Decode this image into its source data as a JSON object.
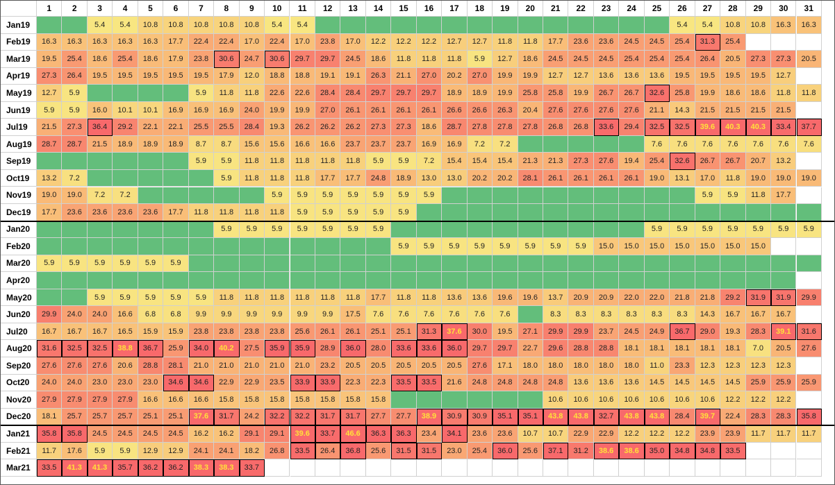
{
  "columns": [
    "1",
    "2",
    "3",
    "4",
    "5",
    "6",
    "7",
    "8",
    "9",
    "10",
    "11",
    "12",
    "13",
    "14",
    "15",
    "16",
    "17",
    "18",
    "19",
    "20",
    "21",
    "22",
    "23",
    "24",
    "25",
    "26",
    "27",
    "28",
    "29",
    "30",
    "31"
  ],
  "colors": {
    "empty_green": "#63be7b",
    "scale_low": "#f8e681",
    "scale_mid": "#f9b376",
    "scale_high": "#f8696b",
    "blank": "#ffffff",
    "highlight_text": "#ffe13a"
  },
  "boxed_cells": {
    "Feb19": [
      "27"
    ],
    "Mar19": [
      "8",
      "10"
    ],
    "May19": [
      "25"
    ],
    "Jul19": [
      "3",
      "23",
      "25",
      "26",
      "27",
      "28",
      "29",
      "30",
      "31"
    ],
    "Sep19": [
      "26"
    ],
    "May20": [
      "29",
      "30"
    ],
    "Jul20": [
      "16",
      "17",
      "26",
      "30",
      "31"
    ],
    "Aug20": [
      "1",
      "2",
      "3",
      "4",
      "5",
      "7",
      "8",
      "10",
      "11",
      "13",
      "15",
      "16",
      "17"
    ],
    "Oct20": [
      "6",
      "7",
      "11",
      "12",
      "15",
      "16"
    ],
    "Dec20": [
      "7",
      "8",
      "10",
      "11",
      "12",
      "13",
      "16",
      "17",
      "18",
      "19",
      "20",
      "21",
      "22",
      "23",
      "24",
      "25",
      "27",
      "31"
    ],
    "Jan21": [
      "1",
      "2",
      "11",
      "12",
      "13",
      "14",
      "15",
      "17"
    ],
    "Feb21": [
      "11",
      "12",
      "13",
      "15",
      "16",
      "19",
      "21",
      "23",
      "24",
      "25",
      "26",
      "27",
      "28"
    ],
    "Mar21": [
      "1",
      "2",
      "3",
      "4",
      "5",
      "6",
      "7",
      "8",
      "9"
    ]
  },
  "rows": [
    {
      "label": "Jan19",
      "values": [
        "",
        "",
        "5.4",
        "5.4",
        "10.8",
        "10.8",
        "10.8",
        "10.8",
        "10.8",
        "5.4",
        "5.4",
        "",
        "",
        "",
        "",
        "",
        "",
        "",
        "",
        "",
        "",
        "",
        "",
        "",
        "",
        "5.4",
        "5.4",
        "10.8",
        "10.8",
        "16.3",
        "16.3"
      ]
    },
    {
      "label": "Feb19",
      "values": [
        "16.3",
        "16.3",
        "16.3",
        "16.3",
        "16.3",
        "17.7",
        "22.4",
        "22.4",
        "17.0",
        "22.4",
        "17.0",
        "23.8",
        "17.0",
        "12.2",
        "12.2",
        "12.2",
        "12.7",
        "12.7",
        "11.8",
        "11.8",
        "17.7",
        "23.6",
        "23.6",
        "24.5",
        "24.5",
        "25.4",
        "31.3",
        "25.4",
        "-",
        "-",
        "-"
      ]
    },
    {
      "label": "Mar19",
      "values": [
        "19.5",
        "25.4",
        "18.6",
        "25.4",
        "18.6",
        "17.9",
        "23.8",
        "30.6",
        "24.7",
        "30.6",
        "29.7",
        "29.7",
        "24.5",
        "18.6",
        "11.8",
        "11.8",
        "11.8",
        "5.9",
        "12.7",
        "18.6",
        "24.5",
        "24.5",
        "24.5",
        "25.4",
        "25.4",
        "25.4",
        "26.4",
        "20.5",
        "27.3",
        "27.3",
        "20.5"
      ]
    },
    {
      "label": "Apr19",
      "values": [
        "27.3",
        "26.4",
        "19.5",
        "19.5",
        "19.5",
        "19.5",
        "19.5",
        "17.9",
        "12.0",
        "18.8",
        "18.8",
        "19.1",
        "19.1",
        "26.3",
        "21.1",
        "27.0",
        "20.2",
        "27.0",
        "19.9",
        "19.9",
        "12.7",
        "12.7",
        "13.6",
        "13.6",
        "13.6",
        "19.5",
        "19.5",
        "19.5",
        "19.5",
        "12.7",
        "-"
      ]
    },
    {
      "label": "May19",
      "values": [
        "12.7",
        "5.9",
        "",
        "",
        "",
        "",
        "5.9",
        "11.8",
        "11.8",
        "22.6",
        "22.6",
        "28.4",
        "28.4",
        "29.7",
        "29.7",
        "29.7",
        "18.9",
        "18.9",
        "19.9",
        "25.8",
        "25.8",
        "19.9",
        "26.7",
        "26.7",
        "32.6",
        "25.8",
        "19.9",
        "18.6",
        "18.6",
        "11.8",
        "11.8"
      ]
    },
    {
      "label": "Jun19",
      "values": [
        "5.9",
        "5.9",
        "16.0",
        "10.1",
        "10.1",
        "16.9",
        "16.9",
        "16.9",
        "24.0",
        "19.9",
        "19.9",
        "27.0",
        "26.1",
        "26.1",
        "26.1",
        "26.1",
        "26.6",
        "26.6",
        "26.3",
        "20.4",
        "27.6",
        "27.6",
        "27.6",
        "27.6",
        "21.1",
        "14.3",
        "21.5",
        "21.5",
        "21.5",
        "21.5",
        "-"
      ]
    },
    {
      "label": "Jul19",
      "values": [
        "21.5",
        "27.3",
        "36.4",
        "29.2",
        "22.1",
        "22.1",
        "25.5",
        "25.5",
        "28.4",
        "19.3",
        "26.2",
        "26.2",
        "26.2",
        "27.3",
        "27.3",
        "18.6",
        "28.7",
        "27.8",
        "27.8",
        "27.8",
        "26.8",
        "26.8",
        "33.6",
        "29.4",
        "32.5",
        "32.5",
        "39.6",
        "40.3",
        "40.3",
        "33.4",
        "37.7"
      ]
    },
    {
      "label": "Aug19",
      "values": [
        "28.7",
        "28.7",
        "21.5",
        "18.9",
        "18.9",
        "18.9",
        "8.7",
        "8.7",
        "15.6",
        "15.6",
        "16.6",
        "16.6",
        "23.7",
        "23.7",
        "23.7",
        "16.9",
        "16.9",
        "7.2",
        "7.2",
        "",
        "",
        "",
        "",
        "",
        "7.6",
        "7.6",
        "7.6",
        "7.6",
        "7.6",
        "7.6",
        "7.6"
      ]
    },
    {
      "label": "Sep19",
      "values": [
        "",
        "",
        "",
        "",
        "",
        "",
        "5.9",
        "5.9",
        "11.8",
        "11.8",
        "11.8",
        "11.8",
        "11.8",
        "5.9",
        "5.9",
        "7.2",
        "15.4",
        "15.4",
        "15.4",
        "21.3",
        "21.3",
        "27.3",
        "27.6",
        "19.4",
        "25.4",
        "32.6",
        "26.7",
        "26.7",
        "20.7",
        "13.2",
        "-"
      ]
    },
    {
      "label": "Oct19",
      "values": [
        "13.2",
        "7.2",
        "",
        "",
        "",
        "",
        "",
        "5.9",
        "11.8",
        "11.8",
        "11.8",
        "17.7",
        "17.7",
        "24.8",
        "18.9",
        "13.0",
        "13.0",
        "20.2",
        "20.2",
        "28.1",
        "26.1",
        "26.1",
        "26.1",
        "26.1",
        "19.0",
        "13.1",
        "17.0",
        "11.8",
        "19.0",
        "19.0",
        "19.0"
      ]
    },
    {
      "label": "Nov19",
      "values": [
        "19.0",
        "19.0",
        "7.2",
        "7.2",
        "",
        "",
        "",
        "",
        "",
        "5.9",
        "5.9",
        "5.9",
        "5.9",
        "5.9",
        "5.9",
        "5.9",
        "",
        "",
        "",
        "",
        "",
        "",
        "",
        "",
        "",
        "",
        "5.9",
        "5.9",
        "11.8",
        "17.7",
        "-"
      ]
    },
    {
      "label": "Dec19",
      "values": [
        "17.7",
        "23.6",
        "23.6",
        "23.6",
        "23.6",
        "17.7",
        "11.8",
        "11.8",
        "11.8",
        "11.8",
        "5.9",
        "5.9",
        "5.9",
        "5.9",
        "5.9",
        "",
        "",
        "",
        "",
        "",
        "",
        "",
        "",
        "",
        "",
        "",
        "",
        "",
        "",
        "",
        ""
      ]
    },
    {
      "label": "Jan20",
      "values": [
        "",
        "",
        "",
        "",
        "",
        "",
        "",
        "5.9",
        "5.9",
        "5.9",
        "5.9",
        "5.9",
        "5.9",
        "5.9",
        "",
        "",
        "",
        "",
        "",
        "",
        "",
        "",
        "",
        "",
        "5.9",
        "5.9",
        "5.9",
        "5.9",
        "5.9",
        "5.9",
        "5.9"
      ]
    },
    {
      "label": "Feb20",
      "values": [
        "",
        "",
        "",
        "",
        "",
        "",
        "",
        "",
        "",
        "",
        "",
        "",
        "",
        "",
        "5.9",
        "5.9",
        "5.9",
        "5.9",
        "5.9",
        "5.9",
        "5.9",
        "5.9",
        "15.0",
        "15.0",
        "15.0",
        "15.0",
        "15.0",
        "15.0",
        "15.0",
        "-",
        "-"
      ]
    },
    {
      "label": "Mar20",
      "values": [
        "5.9",
        "5.9",
        "5.9",
        "5.9",
        "5.9",
        "5.9",
        "",
        "",
        "",
        "",
        "",
        "",
        "",
        "",
        "",
        "",
        "",
        "",
        "",
        "",
        "",
        "",
        "",
        "",
        "",
        "",
        "",
        "",
        "",
        "",
        ""
      ]
    },
    {
      "label": "Apr20",
      "values": [
        "",
        "",
        "",
        "",
        "",
        "",
        "",
        "",
        "",
        "",
        "",
        "",
        "",
        "",
        "",
        "",
        "",
        "",
        "",
        "",
        "",
        "",
        "",
        "",
        "",
        "",
        "",
        "",
        "",
        "",
        "-"
      ]
    },
    {
      "label": "May20",
      "values": [
        "",
        "",
        "5.9",
        "5.9",
        "5.9",
        "5.9",
        "5.9",
        "11.8",
        "11.8",
        "11.8",
        "11.8",
        "11.8",
        "11.8",
        "17.7",
        "11.8",
        "11.8",
        "13.6",
        "13.6",
        "19.6",
        "19.6",
        "13.7",
        "20.9",
        "20.9",
        "22.0",
        "22.0",
        "21.8",
        "21.8",
        "29.2",
        "31.9",
        "31.9",
        "29.9"
      ]
    },
    {
      "label": "Jun20",
      "values": [
        "29.9",
        "24.0",
        "24.0",
        "16.6",
        "6.8",
        "6.8",
        "9.9",
        "9.9",
        "9.9",
        "9.9",
        "9.9",
        "9.9",
        "17.5",
        "7.6",
        "7.6",
        "7.6",
        "7.6",
        "7.6",
        "7.6",
        "",
        "8.3",
        "8.3",
        "8.3",
        "8.3",
        "8.3",
        "8.3",
        "14.3",
        "16.7",
        "16.7",
        "16.7",
        "-"
      ]
    },
    {
      "label": "Jul20",
      "values": [
        "16.7",
        "16.7",
        "16.7",
        "16.5",
        "15.9",
        "15.9",
        "23.8",
        "23.8",
        "23.8",
        "23.8",
        "25.6",
        "26.1",
        "26.1",
        "25.1",
        "25.1",
        "31.3",
        "37.6",
        "30.0",
        "19.5",
        "27.1",
        "29.9",
        "29.9",
        "23.7",
        "24.5",
        "24.9",
        "36.7",
        "29.0",
        "19.3",
        "28.3",
        "39.1",
        "31.6"
      ]
    },
    {
      "label": "Aug20",
      "values": [
        "31.6",
        "32.5",
        "32.5",
        "38.8",
        "36.7",
        "25.9",
        "34.0",
        "40.2",
        "27.5",
        "35.9",
        "35.9",
        "28.9",
        "36.0",
        "28.0",
        "33.6",
        "33.6",
        "36.0",
        "29.7",
        "29.7",
        "22.7",
        "29.6",
        "28.8",
        "28.8",
        "18.1",
        "18.1",
        "18.1",
        "18.1",
        "18.1",
        "7.0",
        "20.5",
        "27.6"
      ]
    },
    {
      "label": "Sep20",
      "values": [
        "27.6",
        "27.6",
        "27.6",
        "20.6",
        "28.8",
        "28.1",
        "21.0",
        "21.0",
        "21.0",
        "21.0",
        "21.0",
        "23.2",
        "20.5",
        "20.5",
        "20.5",
        "20.5",
        "20.5",
        "27.6",
        "17.1",
        "18.0",
        "18.0",
        "18.0",
        "18.0",
        "18.0",
        "11.0",
        "23.3",
        "12.3",
        "12.3",
        "12.3",
        "12.3",
        "-"
      ]
    },
    {
      "label": "Oct20",
      "values": [
        "24.0",
        "24.0",
        "23.0",
        "23.0",
        "23.0",
        "34.6",
        "34.6",
        "22.9",
        "22.9",
        "23.5",
        "33.9",
        "33.9",
        "22.3",
        "22.3",
        "33.5",
        "33.5",
        "21.6",
        "24.8",
        "24.8",
        "24.8",
        "24.8",
        "13.6",
        "13.6",
        "13.6",
        "14.5",
        "14.5",
        "14.5",
        "14.5",
        "25.9",
        "25.9",
        "25.9"
      ]
    },
    {
      "label": "Nov20",
      "values": [
        "27.9",
        "27.9",
        "27.9",
        "27.9",
        "16.6",
        "16.6",
        "16.6",
        "15.8",
        "15.8",
        "15.8",
        "15.8",
        "15.8",
        "15.8",
        "15.8",
        "",
        "",
        "",
        "",
        "",
        "",
        "10.6",
        "10.6",
        "10.6",
        "10.6",
        "10.6",
        "10.6",
        "10.6",
        "12.2",
        "12.2",
        "12.2",
        "-"
      ]
    },
    {
      "label": "Dec20",
      "values": [
        "18.1",
        "25.7",
        "25.7",
        "25.7",
        "25.1",
        "25.1",
        "37.6",
        "31.7",
        "24.2",
        "32.2",
        "32.2",
        "31.7",
        "31.7",
        "27.7",
        "27.7",
        "38.9",
        "30.9",
        "30.9",
        "35.1",
        "35.1",
        "43.8",
        "43.8",
        "32.7",
        "43.8",
        "43.8",
        "28.4",
        "39.7",
        "22.4",
        "28.3",
        "28.3",
        "35.8"
      ]
    },
    {
      "label": "Jan21",
      "values": [
        "35.8",
        "35.8",
        "24.5",
        "24.5",
        "24.5",
        "24.5",
        "16.2",
        "16.2",
        "29.1",
        "29.1",
        "39.6",
        "33.7",
        "46.6",
        "36.3",
        "36.3",
        "23.4",
        "34.1",
        "23.6",
        "23.6",
        "10.7",
        "10.7",
        "22.9",
        "22.9",
        "12.2",
        "12.2",
        "12.2",
        "23.9",
        "23.9",
        "11.7",
        "11.7",
        "11.7"
      ]
    },
    {
      "label": "Feb21",
      "values": [
        "11.7",
        "17.6",
        "5.9",
        "5.9",
        "12.9",
        "12.9",
        "24.1",
        "24.1",
        "18.2",
        "26.8",
        "33.5",
        "26.4",
        "36.8",
        "25.6",
        "31.5",
        "31.5",
        "23.0",
        "25.4",
        "36.0",
        "25.6",
        "37.1",
        "31.2",
        "38.6",
        "38.6",
        "35.0",
        "34.8",
        "34.8",
        "33.5",
        "-",
        "-",
        "-"
      ]
    },
    {
      "label": "Mar21",
      "values": [
        "33.5",
        "41.3",
        "41.3",
        "35.7",
        "36.2",
        "36.2",
        "38.3",
        "38.3",
        "33.7",
        "-",
        "-",
        "-",
        "-",
        "-",
        "-",
        "-",
        "-",
        "-",
        "-",
        "-",
        "-",
        "-",
        "-",
        "-",
        "-",
        "-",
        "-",
        "-",
        "-",
        "-",
        "-"
      ]
    }
  ]
}
